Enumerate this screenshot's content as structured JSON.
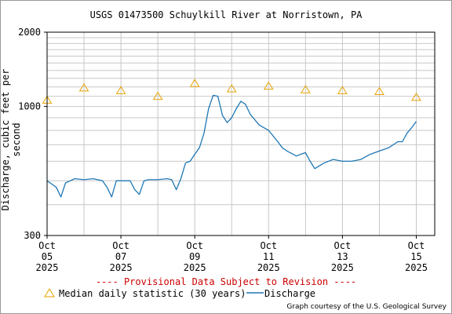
{
  "chart_data": {
    "type": "line",
    "title": "USGS 01473500 Schuylkill River at Norristown, PA",
    "ylabel": "Discharge, cubic feet per second",
    "y_scale": "log",
    "ylim": [
      300,
      2000
    ],
    "y_tick_labels": [
      "300",
      "1000",
      "2000"
    ],
    "xlim": [
      "2025-10-05T00:00",
      "2025-10-15T12:00"
    ],
    "x_tick_labels": [
      {
        "month": "Oct",
        "day": "05",
        "year": "2025",
        "x": "2025-10-05T00:00"
      },
      {
        "month": "Oct",
        "day": "07",
        "year": "2025",
        "x": "2025-10-07T00:00"
      },
      {
        "month": "Oct",
        "day": "09",
        "year": "2025",
        "x": "2025-10-09T00:00"
      },
      {
        "month": "Oct",
        "day": "11",
        "year": "2025",
        "x": "2025-10-11T00:00"
      },
      {
        "month": "Oct",
        "day": "13",
        "year": "2025",
        "x": "2025-10-13T00:00"
      },
      {
        "month": "Oct",
        "day": "15",
        "year": "2025",
        "x": "2025-10-15T00:00"
      }
    ],
    "grid": true,
    "colors": {
      "discharge": "#1f77b4",
      "median": "#e8a200",
      "provisional": "#cc0000"
    },
    "series": [
      {
        "name": "Discharge",
        "x": [
          "2025-10-04T12:00",
          "2025-10-05T00:00",
          "2025-10-05T03:00",
          "2025-10-05T06:00",
          "2025-10-05T09:00",
          "2025-10-05T12:00",
          "2025-10-05T15:00",
          "2025-10-05T18:00",
          "2025-10-06T00:00",
          "2025-10-06T06:00",
          "2025-10-06T12:00",
          "2025-10-06T15:00",
          "2025-10-06T18:00",
          "2025-10-06T21:00",
          "2025-10-07T00:00",
          "2025-10-07T06:00",
          "2025-10-07T09:00",
          "2025-10-07T12:00",
          "2025-10-07T15:00",
          "2025-10-07T18:00",
          "2025-10-08T00:00",
          "2025-10-08T06:00",
          "2025-10-08T09:00",
          "2025-10-08T12:00",
          "2025-10-08T15:00",
          "2025-10-08T18:00",
          "2025-10-08T21:00",
          "2025-10-09T00:00",
          "2025-10-09T03:00",
          "2025-10-09T06:00",
          "2025-10-09T09:00",
          "2025-10-09T12:00",
          "2025-10-09T15:00",
          "2025-10-09T18:00",
          "2025-10-09T21:00",
          "2025-10-10T00:00",
          "2025-10-10T03:00",
          "2025-10-10T06:00",
          "2025-10-10T09:00",
          "2025-10-10T12:00",
          "2025-10-10T18:00",
          "2025-10-11T00:00",
          "2025-10-11T06:00",
          "2025-10-11T09:00",
          "2025-10-11T12:00",
          "2025-10-11T18:00",
          "2025-10-12T00:00",
          "2025-10-12T03:00",
          "2025-10-12T06:00",
          "2025-10-12T12:00",
          "2025-10-12T18:00",
          "2025-10-13T00:00",
          "2025-10-13T06:00",
          "2025-10-13T12:00",
          "2025-10-13T18:00",
          "2025-10-14T00:00",
          "2025-10-14T06:00",
          "2025-10-14T12:00",
          "2025-10-14T15:00",
          "2025-10-14T18:00",
          "2025-10-14T21:00",
          "2025-10-15T00:00"
        ],
        "values": [
          500,
          500,
          485,
          470,
          430,
          490,
          500,
          510,
          505,
          510,
          500,
          470,
          430,
          500,
          500,
          500,
          460,
          440,
          500,
          505,
          505,
          510,
          505,
          460,
          510,
          590,
          600,
          640,
          680,
          780,
          980,
          1110,
          1100,
          920,
          860,
          900,
          980,
          1050,
          1020,
          930,
          840,
          800,
          720,
          680,
          660,
          630,
          650,
          600,
          560,
          590,
          610,
          600,
          600,
          610,
          640,
          660,
          680,
          720,
          720,
          780,
          820,
          870
        ]
      }
    ],
    "median_series": {
      "name": "Median daily statistic (30 years)",
      "x": [
        "2025-10-05T00:00",
        "2025-10-06T00:00",
        "2025-10-07T00:00",
        "2025-10-08T00:00",
        "2025-10-09T00:00",
        "2025-10-10T00:00",
        "2025-10-11T00:00",
        "2025-10-12T00:00",
        "2025-10-13T00:00",
        "2025-10-14T00:00",
        "2025-10-15T00:00"
      ],
      "values": [
        1060,
        1190,
        1160,
        1100,
        1240,
        1180,
        1210,
        1170,
        1160,
        1150,
        1090
      ]
    }
  },
  "footer": {
    "provisional": "---- Provisional Data Subject to Revision ----",
    "legend_median": "Median daily statistic (30 years)",
    "legend_discharge": "Discharge",
    "courtesy": "Graph courtesy of the U.S. Geological Survey"
  }
}
